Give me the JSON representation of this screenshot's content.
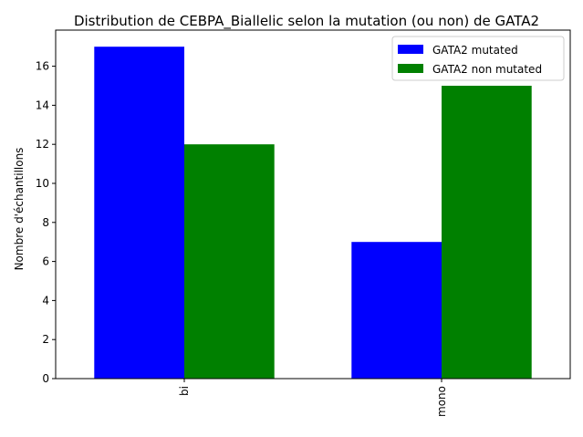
{
  "chart_data": {
    "type": "bar",
    "title": "Distribution de CEBPA_Biallelic selon la mutation (ou non) de GATA2",
    "xlabel": "",
    "ylabel": "Nombre d'échantillons",
    "categories": [
      "bi",
      "mono"
    ],
    "series": [
      {
        "name": "GATA2 mutated",
        "values": [
          17,
          7
        ],
        "color": "#0000ff"
      },
      {
        "name": "GATA2 non mutated",
        "values": [
          12,
          15
        ],
        "color": "#008000"
      }
    ],
    "ylim": [
      0,
      17.85
    ],
    "yticks": [
      0,
      2,
      4,
      6,
      8,
      10,
      12,
      14,
      16
    ],
    "xtick_rotation": 90,
    "grid": false,
    "legend_position": "top-right"
  }
}
